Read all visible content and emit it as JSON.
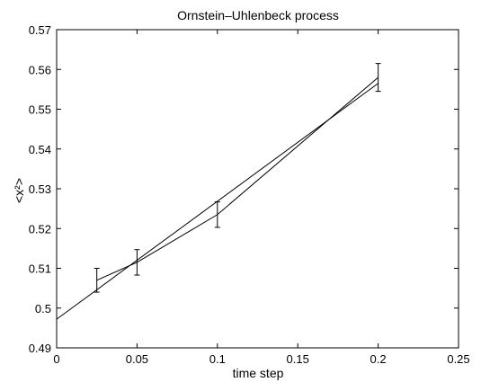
{
  "chart_data": {
    "type": "line",
    "title": "Ornstein–Uhlenbeck process",
    "xlabel": "time step",
    "ylabel": "<x²>",
    "xlim": [
      0,
      0.25
    ],
    "ylim": [
      0.49,
      0.57
    ],
    "xticks": [
      "0",
      "0.05",
      "0.1",
      "0.15",
      "0.2",
      "0.25"
    ],
    "yticks": [
      "0.49",
      "0.5",
      "0.51",
      "0.52",
      "0.53",
      "0.54",
      "0.55",
      "0.56",
      "0.57"
    ],
    "grid": false,
    "series": [
      {
        "style": "line-with-errorbars",
        "x": [
          0.025,
          0.05,
          0.1,
          0.2
        ],
        "y": [
          0.507,
          0.5115,
          0.5235,
          0.558
        ],
        "yerr": [
          0.003,
          0.0032,
          0.0032,
          0.0035
        ]
      },
      {
        "style": "line",
        "x": [
          0,
          0.2
        ],
        "y": [
          0.4972,
          0.5565
        ]
      }
    ]
  }
}
